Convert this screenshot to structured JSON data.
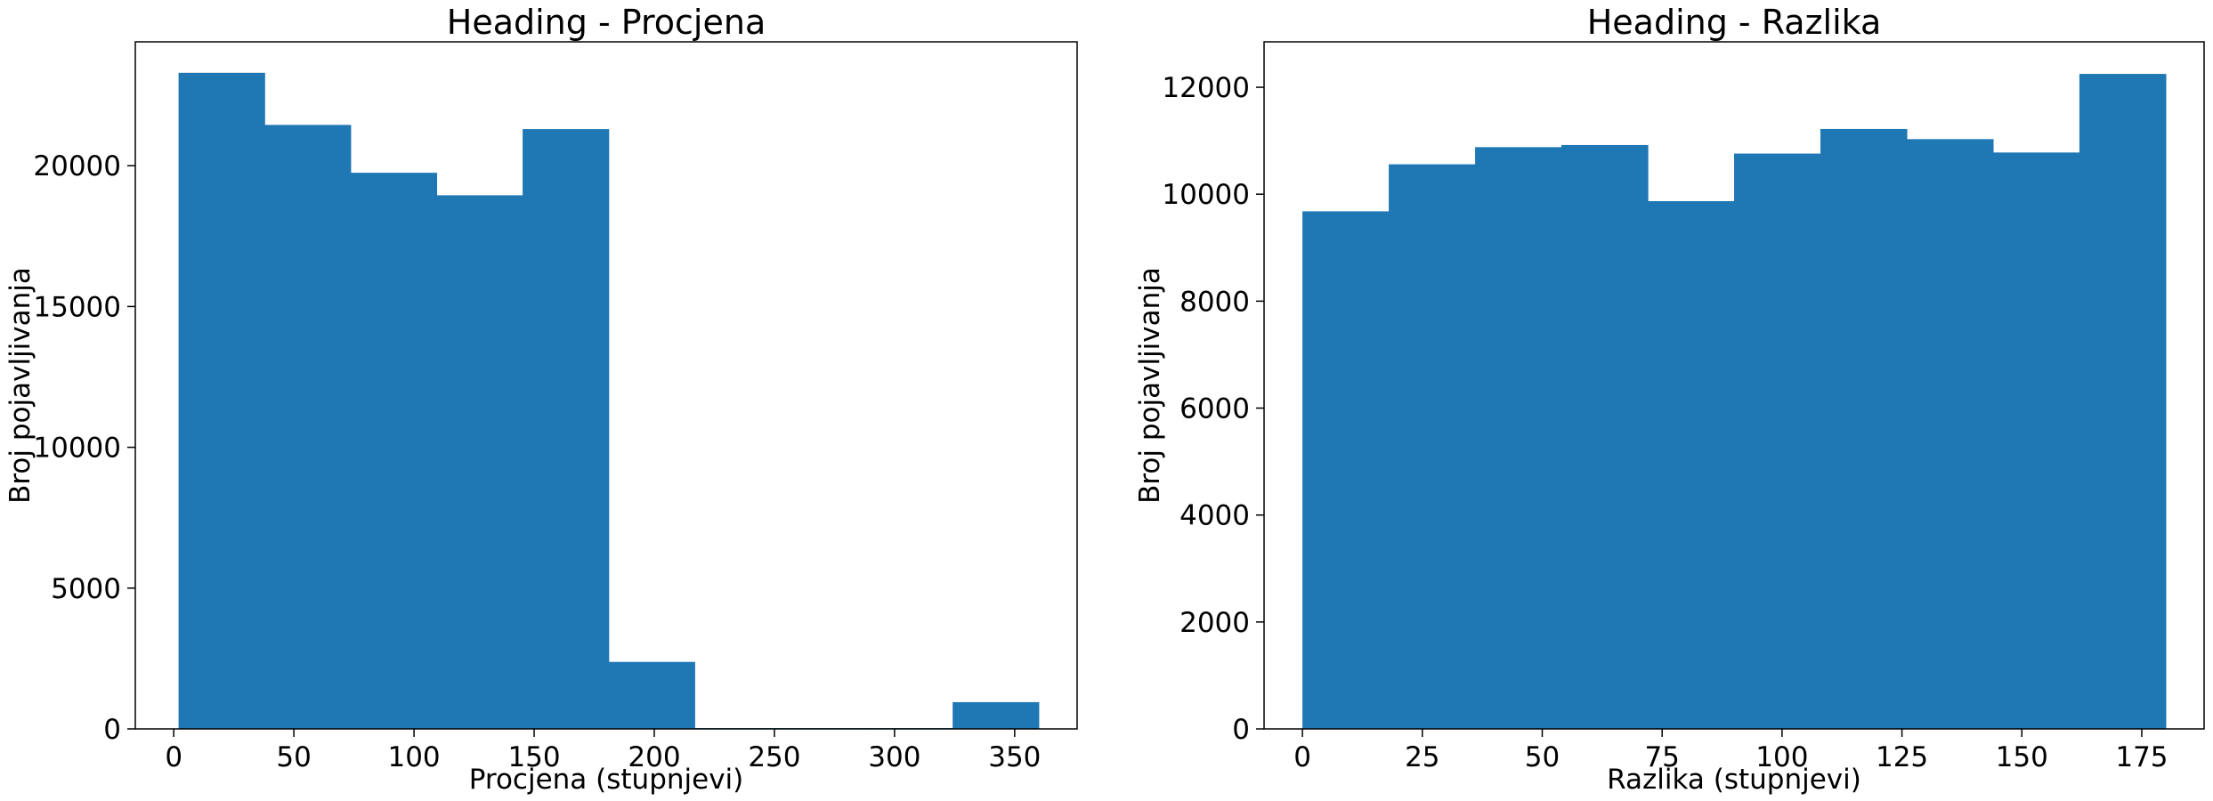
{
  "colors": {
    "bar": "#1f77b4",
    "axis": "#000000",
    "background": "#ffffff"
  },
  "chart_data": [
    {
      "type": "bar",
      "subtype": "histogram",
      "title": "Heading - Procjena",
      "xlabel": "Procjena (stupnjevi)",
      "ylabel": "Broj pojavljivanja",
      "xlim": [
        -16,
        376
      ],
      "ylim": [
        0,
        24400
      ],
      "xticks": [
        0,
        50,
        100,
        150,
        200,
        250,
        300,
        350
      ],
      "yticks": [
        0,
        5000,
        10000,
        15000,
        20000
      ],
      "bin_edges": [
        2,
        37.8,
        73.6,
        109.4,
        145.2,
        181,
        216.8,
        252.6,
        288.4,
        324.2,
        360
      ],
      "values": [
        23300,
        21450,
        19750,
        18950,
        21300,
        2380,
        30,
        30,
        30,
        950
      ],
      "grid": false,
      "legend": "none"
    },
    {
      "type": "bar",
      "subtype": "histogram",
      "title": "Heading - Razlika",
      "xlabel": "Razlika (stupnjevi)",
      "ylabel": "Broj pojavljivanja",
      "xlim": [
        -8,
        188
      ],
      "ylim": [
        0,
        12850
      ],
      "xticks": [
        0,
        25,
        50,
        75,
        100,
        125,
        150,
        175
      ],
      "yticks": [
        0,
        2000,
        4000,
        6000,
        8000,
        10000,
        12000
      ],
      "bin_edges": [
        0,
        18,
        36,
        54,
        72,
        90,
        108,
        126,
        144,
        162,
        180
      ],
      "values": [
        9680,
        10560,
        10880,
        10920,
        9870,
        10760,
        11220,
        11030,
        10780,
        12250
      ],
      "grid": false,
      "legend": "none"
    }
  ]
}
